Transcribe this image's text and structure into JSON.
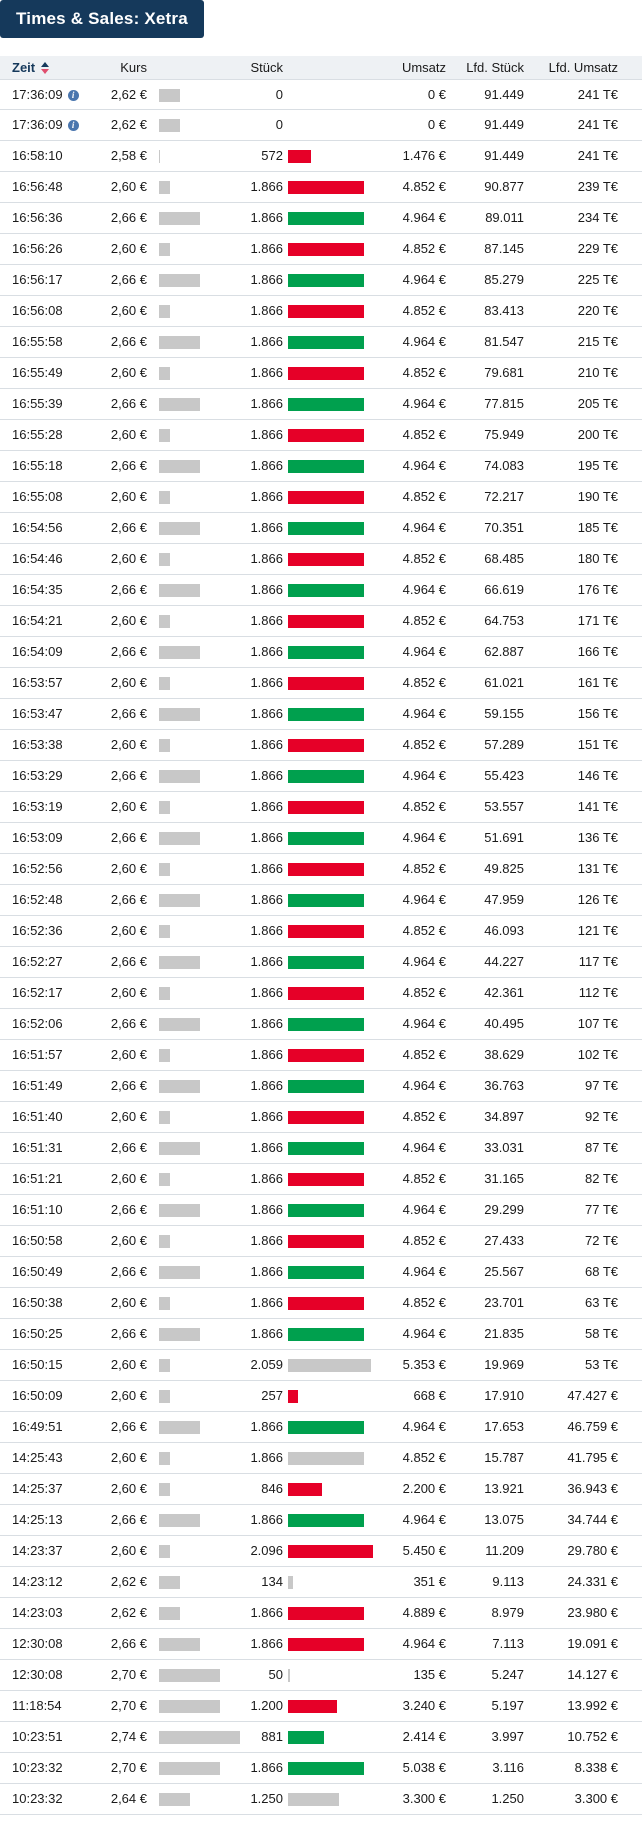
{
  "title": "Times & Sales: Xetra",
  "colors": {
    "navy": "#15395b",
    "tick_up_green": "#00a04e",
    "tick_down_red": "#e60028",
    "tick_flat_gray": "#c8c8c8",
    "header_bg": "#eef1f4",
    "separator": "#d9dee3",
    "info_blue": "#4a76ae"
  },
  "columns": {
    "zeit": "Zeit",
    "kurs": "Kurs",
    "stueck": "Stück",
    "umsatz": "Umsatz",
    "lfd_stueck": "Lfd. Stück",
    "lfd_umsatz": "Lfd. Umsatz"
  },
  "price_range": {
    "min": 2.58,
    "max": 2.74
  },
  "icons": {
    "info": "i"
  },
  "rows": [
    {
      "time": "17:36:09",
      "info": true,
      "kurs": "2,62 €",
      "kurs_value": 2.62,
      "stueck": "0",
      "stueck_value": 0,
      "tick": "none",
      "umsatz": "0 €",
      "lfd_stueck": "91.449",
      "lfd_umsatz": "241 T€"
    },
    {
      "time": "17:36:09",
      "info": true,
      "kurs": "2,62 €",
      "kurs_value": 2.62,
      "stueck": "0",
      "stueck_value": 0,
      "tick": "none",
      "umsatz": "0 €",
      "lfd_stueck": "91.449",
      "lfd_umsatz": "241 T€"
    },
    {
      "time": "16:58:10",
      "info": false,
      "kurs": "2,58 €",
      "kurs_value": 2.58,
      "stueck": "572",
      "stueck_value": 572,
      "tick": "down",
      "umsatz": "1.476 €",
      "lfd_stueck": "91.449",
      "lfd_umsatz": "241 T€"
    },
    {
      "time": "16:56:48",
      "info": false,
      "kurs": "2,60 €",
      "kurs_value": 2.6,
      "stueck": "1.866",
      "stueck_value": 1866,
      "tick": "down",
      "umsatz": "4.852 €",
      "lfd_stueck": "90.877",
      "lfd_umsatz": "239 T€"
    },
    {
      "time": "16:56:36",
      "info": false,
      "kurs": "2,66 €",
      "kurs_value": 2.66,
      "stueck": "1.866",
      "stueck_value": 1866,
      "tick": "up",
      "umsatz": "4.964 €",
      "lfd_stueck": "89.011",
      "lfd_umsatz": "234 T€"
    },
    {
      "time": "16:56:26",
      "info": false,
      "kurs": "2,60 €",
      "kurs_value": 2.6,
      "stueck": "1.866",
      "stueck_value": 1866,
      "tick": "down",
      "umsatz": "4.852 €",
      "lfd_stueck": "87.145",
      "lfd_umsatz": "229 T€"
    },
    {
      "time": "16:56:17",
      "info": false,
      "kurs": "2,66 €",
      "kurs_value": 2.66,
      "stueck": "1.866",
      "stueck_value": 1866,
      "tick": "up",
      "umsatz": "4.964 €",
      "lfd_stueck": "85.279",
      "lfd_umsatz": "225 T€"
    },
    {
      "time": "16:56:08",
      "info": false,
      "kurs": "2,60 €",
      "kurs_value": 2.6,
      "stueck": "1.866",
      "stueck_value": 1866,
      "tick": "down",
      "umsatz": "4.852 €",
      "lfd_stueck": "83.413",
      "lfd_umsatz": "220 T€"
    },
    {
      "time": "16:55:58",
      "info": false,
      "kurs": "2,66 €",
      "kurs_value": 2.66,
      "stueck": "1.866",
      "stueck_value": 1866,
      "tick": "up",
      "umsatz": "4.964 €",
      "lfd_stueck": "81.547",
      "lfd_umsatz": "215 T€"
    },
    {
      "time": "16:55:49",
      "info": false,
      "kurs": "2,60 €",
      "kurs_value": 2.6,
      "stueck": "1.866",
      "stueck_value": 1866,
      "tick": "down",
      "umsatz": "4.852 €",
      "lfd_stueck": "79.681",
      "lfd_umsatz": "210 T€"
    },
    {
      "time": "16:55:39",
      "info": false,
      "kurs": "2,66 €",
      "kurs_value": 2.66,
      "stueck": "1.866",
      "stueck_value": 1866,
      "tick": "up",
      "umsatz": "4.964 €",
      "lfd_stueck": "77.815",
      "lfd_umsatz": "205 T€"
    },
    {
      "time": "16:55:28",
      "info": false,
      "kurs": "2,60 €",
      "kurs_value": 2.6,
      "stueck": "1.866",
      "stueck_value": 1866,
      "tick": "down",
      "umsatz": "4.852 €",
      "lfd_stueck": "75.949",
      "lfd_umsatz": "200 T€"
    },
    {
      "time": "16:55:18",
      "info": false,
      "kurs": "2,66 €",
      "kurs_value": 2.66,
      "stueck": "1.866",
      "stueck_value": 1866,
      "tick": "up",
      "umsatz": "4.964 €",
      "lfd_stueck": "74.083",
      "lfd_umsatz": "195 T€"
    },
    {
      "time": "16:55:08",
      "info": false,
      "kurs": "2,60 €",
      "kurs_value": 2.6,
      "stueck": "1.866",
      "stueck_value": 1866,
      "tick": "down",
      "umsatz": "4.852 €",
      "lfd_stueck": "72.217",
      "lfd_umsatz": "190 T€"
    },
    {
      "time": "16:54:56",
      "info": false,
      "kurs": "2,66 €",
      "kurs_value": 2.66,
      "stueck": "1.866",
      "stueck_value": 1866,
      "tick": "up",
      "umsatz": "4.964 €",
      "lfd_stueck": "70.351",
      "lfd_umsatz": "185 T€"
    },
    {
      "time": "16:54:46",
      "info": false,
      "kurs": "2,60 €",
      "kurs_value": 2.6,
      "stueck": "1.866",
      "stueck_value": 1866,
      "tick": "down",
      "umsatz": "4.852 €",
      "lfd_stueck": "68.485",
      "lfd_umsatz": "180 T€"
    },
    {
      "time": "16:54:35",
      "info": false,
      "kurs": "2,66 €",
      "kurs_value": 2.66,
      "stueck": "1.866",
      "stueck_value": 1866,
      "tick": "up",
      "umsatz": "4.964 €",
      "lfd_stueck": "66.619",
      "lfd_umsatz": "176 T€"
    },
    {
      "time": "16:54:21",
      "info": false,
      "kurs": "2,60 €",
      "kurs_value": 2.6,
      "stueck": "1.866",
      "stueck_value": 1866,
      "tick": "down",
      "umsatz": "4.852 €",
      "lfd_stueck": "64.753",
      "lfd_umsatz": "171 T€"
    },
    {
      "time": "16:54:09",
      "info": false,
      "kurs": "2,66 €",
      "kurs_value": 2.66,
      "stueck": "1.866",
      "stueck_value": 1866,
      "tick": "up",
      "umsatz": "4.964 €",
      "lfd_stueck": "62.887",
      "lfd_umsatz": "166 T€"
    },
    {
      "time": "16:53:57",
      "info": false,
      "kurs": "2,60 €",
      "kurs_value": 2.6,
      "stueck": "1.866",
      "stueck_value": 1866,
      "tick": "down",
      "umsatz": "4.852 €",
      "lfd_stueck": "61.021",
      "lfd_umsatz": "161 T€"
    },
    {
      "time": "16:53:47",
      "info": false,
      "kurs": "2,66 €",
      "kurs_value": 2.66,
      "stueck": "1.866",
      "stueck_value": 1866,
      "tick": "up",
      "umsatz": "4.964 €",
      "lfd_stueck": "59.155",
      "lfd_umsatz": "156 T€"
    },
    {
      "time": "16:53:38",
      "info": false,
      "kurs": "2,60 €",
      "kurs_value": 2.6,
      "stueck": "1.866",
      "stueck_value": 1866,
      "tick": "down",
      "umsatz": "4.852 €",
      "lfd_stueck": "57.289",
      "lfd_umsatz": "151 T€"
    },
    {
      "time": "16:53:29",
      "info": false,
      "kurs": "2,66 €",
      "kurs_value": 2.66,
      "stueck": "1.866",
      "stueck_value": 1866,
      "tick": "up",
      "umsatz": "4.964 €",
      "lfd_stueck": "55.423",
      "lfd_umsatz": "146 T€"
    },
    {
      "time": "16:53:19",
      "info": false,
      "kurs": "2,60 €",
      "kurs_value": 2.6,
      "stueck": "1.866",
      "stueck_value": 1866,
      "tick": "down",
      "umsatz": "4.852 €",
      "lfd_stueck": "53.557",
      "lfd_umsatz": "141 T€"
    },
    {
      "time": "16:53:09",
      "info": false,
      "kurs": "2,66 €",
      "kurs_value": 2.66,
      "stueck": "1.866",
      "stueck_value": 1866,
      "tick": "up",
      "umsatz": "4.964 €",
      "lfd_stueck": "51.691",
      "lfd_umsatz": "136 T€"
    },
    {
      "time": "16:52:56",
      "info": false,
      "kurs": "2,60 €",
      "kurs_value": 2.6,
      "stueck": "1.866",
      "stueck_value": 1866,
      "tick": "down",
      "umsatz": "4.852 €",
      "lfd_stueck": "49.825",
      "lfd_umsatz": "131 T€"
    },
    {
      "time": "16:52:48",
      "info": false,
      "kurs": "2,66 €",
      "kurs_value": 2.66,
      "stueck": "1.866",
      "stueck_value": 1866,
      "tick": "up",
      "umsatz": "4.964 €",
      "lfd_stueck": "47.959",
      "lfd_umsatz": "126 T€"
    },
    {
      "time": "16:52:36",
      "info": false,
      "kurs": "2,60 €",
      "kurs_value": 2.6,
      "stueck": "1.866",
      "stueck_value": 1866,
      "tick": "down",
      "umsatz": "4.852 €",
      "lfd_stueck": "46.093",
      "lfd_umsatz": "121 T€"
    },
    {
      "time": "16:52:27",
      "info": false,
      "kurs": "2,66 €",
      "kurs_value": 2.66,
      "stueck": "1.866",
      "stueck_value": 1866,
      "tick": "up",
      "umsatz": "4.964 €",
      "lfd_stueck": "44.227",
      "lfd_umsatz": "117 T€"
    },
    {
      "time": "16:52:17",
      "info": false,
      "kurs": "2,60 €",
      "kurs_value": 2.6,
      "stueck": "1.866",
      "stueck_value": 1866,
      "tick": "down",
      "umsatz": "4.852 €",
      "lfd_stueck": "42.361",
      "lfd_umsatz": "112 T€"
    },
    {
      "time": "16:52:06",
      "info": false,
      "kurs": "2,66 €",
      "kurs_value": 2.66,
      "stueck": "1.866",
      "stueck_value": 1866,
      "tick": "up",
      "umsatz": "4.964 €",
      "lfd_stueck": "40.495",
      "lfd_umsatz": "107 T€"
    },
    {
      "time": "16:51:57",
      "info": false,
      "kurs": "2,60 €",
      "kurs_value": 2.6,
      "stueck": "1.866",
      "stueck_value": 1866,
      "tick": "down",
      "umsatz": "4.852 €",
      "lfd_stueck": "38.629",
      "lfd_umsatz": "102 T€"
    },
    {
      "time": "16:51:49",
      "info": false,
      "kurs": "2,66 €",
      "kurs_value": 2.66,
      "stueck": "1.866",
      "stueck_value": 1866,
      "tick": "up",
      "umsatz": "4.964 €",
      "lfd_stueck": "36.763",
      "lfd_umsatz": "97 T€"
    },
    {
      "time": "16:51:40",
      "info": false,
      "kurs": "2,60 €",
      "kurs_value": 2.6,
      "stueck": "1.866",
      "stueck_value": 1866,
      "tick": "down",
      "umsatz": "4.852 €",
      "lfd_stueck": "34.897",
      "lfd_umsatz": "92 T€"
    },
    {
      "time": "16:51:31",
      "info": false,
      "kurs": "2,66 €",
      "kurs_value": 2.66,
      "stueck": "1.866",
      "stueck_value": 1866,
      "tick": "up",
      "umsatz": "4.964 €",
      "lfd_stueck": "33.031",
      "lfd_umsatz": "87 T€"
    },
    {
      "time": "16:51:21",
      "info": false,
      "kurs": "2,60 €",
      "kurs_value": 2.6,
      "stueck": "1.866",
      "stueck_value": 1866,
      "tick": "down",
      "umsatz": "4.852 €",
      "lfd_stueck": "31.165",
      "lfd_umsatz": "82 T€"
    },
    {
      "time": "16:51:10",
      "info": false,
      "kurs": "2,66 €",
      "kurs_value": 2.66,
      "stueck": "1.866",
      "stueck_value": 1866,
      "tick": "up",
      "umsatz": "4.964 €",
      "lfd_stueck": "29.299",
      "lfd_umsatz": "77 T€"
    },
    {
      "time": "16:50:58",
      "info": false,
      "kurs": "2,60 €",
      "kurs_value": 2.6,
      "stueck": "1.866",
      "stueck_value": 1866,
      "tick": "down",
      "umsatz": "4.852 €",
      "lfd_stueck": "27.433",
      "lfd_umsatz": "72 T€"
    },
    {
      "time": "16:50:49",
      "info": false,
      "kurs": "2,66 €",
      "kurs_value": 2.66,
      "stueck": "1.866",
      "stueck_value": 1866,
      "tick": "up",
      "umsatz": "4.964 €",
      "lfd_stueck": "25.567",
      "lfd_umsatz": "68 T€"
    },
    {
      "time": "16:50:38",
      "info": false,
      "kurs": "2,60 €",
      "kurs_value": 2.6,
      "stueck": "1.866",
      "stueck_value": 1866,
      "tick": "down",
      "umsatz": "4.852 €",
      "lfd_stueck": "23.701",
      "lfd_umsatz": "63 T€"
    },
    {
      "time": "16:50:25",
      "info": false,
      "kurs": "2,66 €",
      "kurs_value": 2.66,
      "stueck": "1.866",
      "stueck_value": 1866,
      "tick": "up",
      "umsatz": "4.964 €",
      "lfd_stueck": "21.835",
      "lfd_umsatz": "58 T€"
    },
    {
      "time": "16:50:15",
      "info": false,
      "kurs": "2,60 €",
      "kurs_value": 2.6,
      "stueck": "2.059",
      "stueck_value": 2059,
      "tick": "flat",
      "umsatz": "5.353 €",
      "lfd_stueck": "19.969",
      "lfd_umsatz": "53 T€"
    },
    {
      "time": "16:50:09",
      "info": false,
      "kurs": "2,60 €",
      "kurs_value": 2.6,
      "stueck": "257",
      "stueck_value": 257,
      "tick": "down",
      "umsatz": "668 €",
      "lfd_stueck": "17.910",
      "lfd_umsatz": "47.427 €"
    },
    {
      "time": "16:49:51",
      "info": false,
      "kurs": "2,66 €",
      "kurs_value": 2.66,
      "stueck": "1.866",
      "stueck_value": 1866,
      "tick": "up",
      "umsatz": "4.964 €",
      "lfd_stueck": "17.653",
      "lfd_umsatz": "46.759 €"
    },
    {
      "time": "14:25:43",
      "info": false,
      "kurs": "2,60 €",
      "kurs_value": 2.6,
      "stueck": "1.866",
      "stueck_value": 1866,
      "tick": "flat",
      "umsatz": "4.852 €",
      "lfd_stueck": "15.787",
      "lfd_umsatz": "41.795 €"
    },
    {
      "time": "14:25:37",
      "info": false,
      "kurs": "2,60 €",
      "kurs_value": 2.6,
      "stueck": "846",
      "stueck_value": 846,
      "tick": "down",
      "umsatz": "2.200 €",
      "lfd_stueck": "13.921",
      "lfd_umsatz": "36.943 €"
    },
    {
      "time": "14:25:13",
      "info": false,
      "kurs": "2,66 €",
      "kurs_value": 2.66,
      "stueck": "1.866",
      "stueck_value": 1866,
      "tick": "up",
      "umsatz": "4.964 €",
      "lfd_stueck": "13.075",
      "lfd_umsatz": "34.744 €"
    },
    {
      "time": "14:23:37",
      "info": false,
      "kurs": "2,60 €",
      "kurs_value": 2.6,
      "stueck": "2.096",
      "stueck_value": 2096,
      "tick": "down",
      "umsatz": "5.450 €",
      "lfd_stueck": "11.209",
      "lfd_umsatz": "29.780 €"
    },
    {
      "time": "14:23:12",
      "info": false,
      "kurs": "2,62 €",
      "kurs_value": 2.62,
      "stueck": "134",
      "stueck_value": 134,
      "tick": "flat",
      "umsatz": "351 €",
      "lfd_stueck": "9.113",
      "lfd_umsatz": "24.331 €"
    },
    {
      "time": "14:23:03",
      "info": false,
      "kurs": "2,62 €",
      "kurs_value": 2.62,
      "stueck": "1.866",
      "stueck_value": 1866,
      "tick": "down",
      "umsatz": "4.889 €",
      "lfd_stueck": "8.979",
      "lfd_umsatz": "23.980 €"
    },
    {
      "time": "12:30:08",
      "info": false,
      "kurs": "2,66 €",
      "kurs_value": 2.66,
      "stueck": "1.866",
      "stueck_value": 1866,
      "tick": "down",
      "umsatz": "4.964 €",
      "lfd_stueck": "7.113",
      "lfd_umsatz": "19.091 €"
    },
    {
      "time": "12:30:08",
      "info": false,
      "kurs": "2,70 €",
      "kurs_value": 2.7,
      "stueck": "50",
      "stueck_value": 50,
      "tick": "flat",
      "umsatz": "135 €",
      "lfd_stueck": "5.247",
      "lfd_umsatz": "14.127 €"
    },
    {
      "time": "11:18:54",
      "info": false,
      "kurs": "2,70 €",
      "kurs_value": 2.7,
      "stueck": "1.200",
      "stueck_value": 1200,
      "tick": "down",
      "umsatz": "3.240 €",
      "lfd_stueck": "5.197",
      "lfd_umsatz": "13.992 €"
    },
    {
      "time": "10:23:51",
      "info": false,
      "kurs": "2,74 €",
      "kurs_value": 2.74,
      "stueck": "881",
      "stueck_value": 881,
      "tick": "up",
      "umsatz": "2.414 €",
      "lfd_stueck": "3.997",
      "lfd_umsatz": "10.752 €"
    },
    {
      "time": "10:23:32",
      "info": false,
      "kurs": "2,70 €",
      "kurs_value": 2.7,
      "stueck": "1.866",
      "stueck_value": 1866,
      "tick": "up",
      "umsatz": "5.038 €",
      "lfd_stueck": "3.116",
      "lfd_umsatz": "8.338 €"
    },
    {
      "time": "10:23:32",
      "info": false,
      "kurs": "2,64 €",
      "kurs_value": 2.64,
      "stueck": "1.250",
      "stueck_value": 1250,
      "tick": "flat",
      "umsatz": "3.300 €",
      "lfd_stueck": "1.250",
      "lfd_umsatz": "3.300 €"
    }
  ]
}
